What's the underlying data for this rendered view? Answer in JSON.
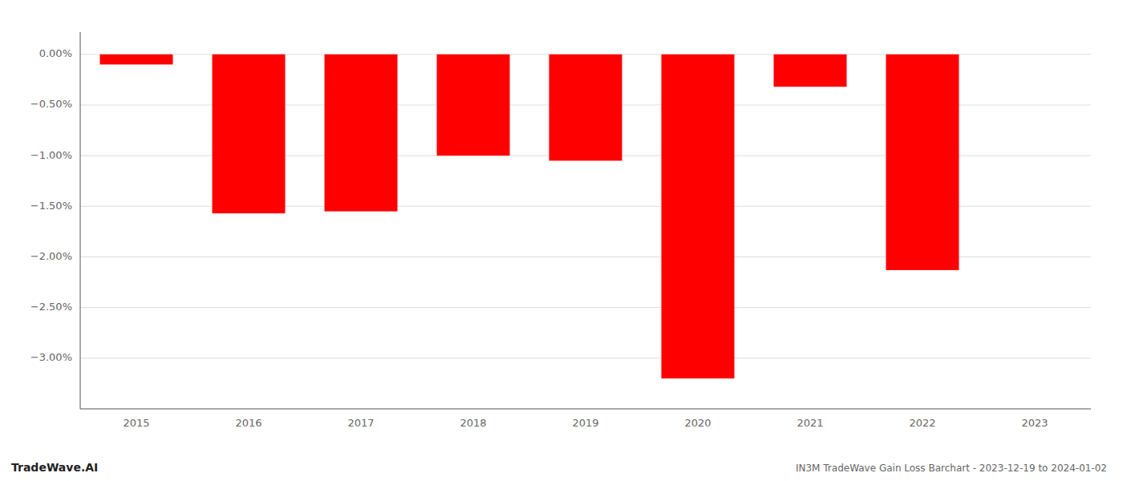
{
  "chart_data": {
    "type": "bar",
    "title": "IN3M TradeWave Gain Loss Barchart - 2023-12-19 to 2024-01-02",
    "annotations": [
      "TradeWave.AI"
    ],
    "categories": [
      "2015",
      "2016",
      "2017",
      "2018",
      "2019",
      "2020",
      "2021",
      "2022",
      "2023"
    ],
    "values": [
      -0.1,
      -1.57,
      -1.55,
      -1.0,
      -1.05,
      -3.2,
      -0.32,
      -2.13,
      null
    ],
    "color": "#ff0000",
    "ylim": [
      -3.5,
      0.22
    ],
    "yticks": [
      {
        "value": 0.0,
        "label": "0.00%"
      },
      {
        "value": -0.5,
        "label": "−0.50%"
      },
      {
        "value": -1.0,
        "label": "−1.00%"
      },
      {
        "value": -1.5,
        "label": "−1.50%"
      },
      {
        "value": -2.0,
        "label": "−2.00%"
      },
      {
        "value": -2.5,
        "label": "−2.50%"
      },
      {
        "value": -3.0,
        "label": "−3.00%"
      }
    ],
    "grid": true
  }
}
